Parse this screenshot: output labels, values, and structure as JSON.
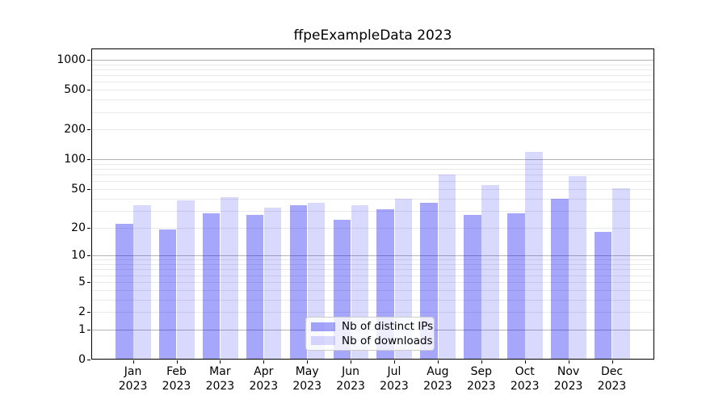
{
  "title": "ffpeExampleData 2023",
  "chart_data": {
    "type": "bar",
    "title": "ffpeExampleData 2023",
    "yscale": "log1p",
    "grid": true,
    "legend_position": "lower center",
    "xlabel": "",
    "ylabel": "",
    "categories": [
      "Jan 2023",
      "Feb 2023",
      "Mar 2023",
      "Apr 2023",
      "May 2023",
      "Jun 2023",
      "Jul 2023",
      "Aug 2023",
      "Sep 2023",
      "Oct 2023",
      "Nov 2023",
      "Dec 2023"
    ],
    "series": [
      {
        "name": "Nb of distinct IPs",
        "color": "rgba(0,0,240,0.35)",
        "values": [
          22,
          19,
          28,
          27,
          34,
          24,
          31,
          36,
          27,
          28,
          40,
          18
        ]
      },
      {
        "name": "Nb of downloads",
        "color": "rgba(0,0,240,0.15)",
        "values": [
          34,
          38,
          41,
          32,
          36,
          34,
          40,
          70,
          55,
          120,
          68,
          51
        ]
      }
    ],
    "yticks": [
      0,
      1,
      2,
      5,
      10,
      20,
      50,
      100,
      200,
      500,
      1000
    ],
    "major_grid_values": [
      1,
      10,
      100,
      1000
    ],
    "ylim": [
      0,
      1300
    ]
  },
  "colors": {
    "background": "#ffffff",
    "axis": "#000000",
    "major_grid": "#b5b5b5",
    "minor_grid": "#e9e9e9",
    "legend_border": "#cccccc",
    "bar_distinct_ips": "rgba(0,0,240,0.35)",
    "bar_downloads": "rgba(0,0,240,0.15)"
  }
}
